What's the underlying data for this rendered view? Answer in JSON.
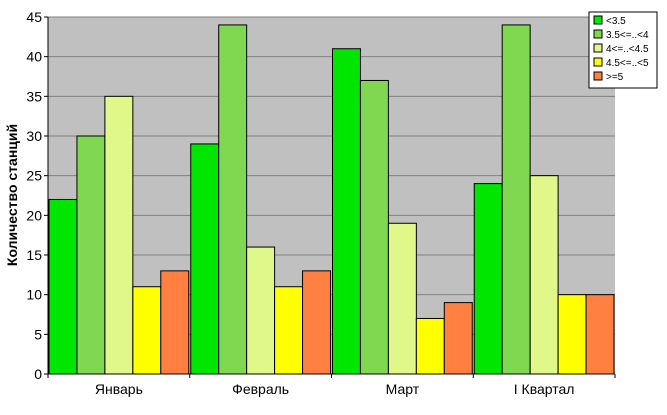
{
  "chart_data": {
    "type": "bar",
    "categories": [
      "Январь",
      "Февраль",
      "Март",
      "I Квартал"
    ],
    "series": [
      {
        "name": "<3.5",
        "color": "#00e600",
        "values": [
          22,
          29,
          41,
          24
        ]
      },
      {
        "name": "3.5<=..<4",
        "color": "#80d850",
        "values": [
          30,
          44,
          37,
          44
        ]
      },
      {
        "name": "4<=..<4.5",
        "color": "#e0f88a",
        "values": [
          35,
          16,
          19,
          25
        ]
      },
      {
        "name": "4.5<=..<5",
        "color": "#ffff00",
        "values": [
          11,
          11,
          7,
          10
        ]
      },
      {
        "name": ">=5",
        "color": "#ff8040",
        "values": [
          13,
          13,
          9,
          10
        ]
      }
    ],
    "title": "",
    "xlabel": "",
    "ylabel": "Количество станций",
    "ylim": [
      0,
      45
    ],
    "yticks": [
      0,
      5,
      10,
      15,
      20,
      25,
      30,
      35,
      40,
      45
    ],
    "grid": true,
    "plot_background": "#c0c0c0",
    "legend_position": "top-right"
  }
}
